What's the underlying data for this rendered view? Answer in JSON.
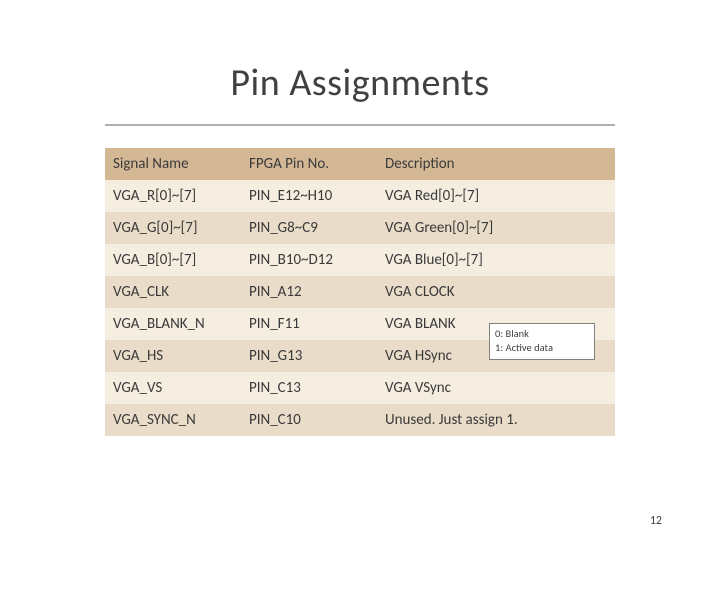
{
  "title": "Pin Assignments",
  "pagenum": "12",
  "callout": {
    "line1": "0: Blank",
    "line2": "1: Active data"
  },
  "table": {
    "headers": [
      "Signal Name",
      "FPGA Pin No.",
      "Description"
    ],
    "rows": [
      [
        "VGA_R[0]~[7]",
        "PIN_E12~H10",
        "VGA Red[0]~[7]"
      ],
      [
        "VGA_G[0]~[7]",
        "PIN_G8~C9",
        "VGA Green[0]~[7]"
      ],
      [
        "VGA_B[0]~[7]",
        "PIN_B10~D12",
        "VGA Blue[0]~[7]"
      ],
      [
        "VGA_CLK",
        "PIN_A12",
        "VGA CLOCK"
      ],
      [
        "VGA_BLANK_N",
        "PIN_F11",
        "VGA BLANK"
      ],
      [
        "VGA_HS",
        "PIN_G13",
        "VGA HSync"
      ],
      [
        "VGA_VS",
        "PIN_C13",
        "VGA VSync"
      ],
      [
        "VGA_SYNC_N",
        "PIN_C10",
        "Unused. Just assign 1."
      ]
    ]
  },
  "colors": {
    "header_bg": "#d4b896",
    "row_even_bg": "#e9dcc8",
    "row_odd_bg": "#f4ede0",
    "divider": "#b0b0b0",
    "text": "#404040",
    "callout_border": "#808080"
  }
}
